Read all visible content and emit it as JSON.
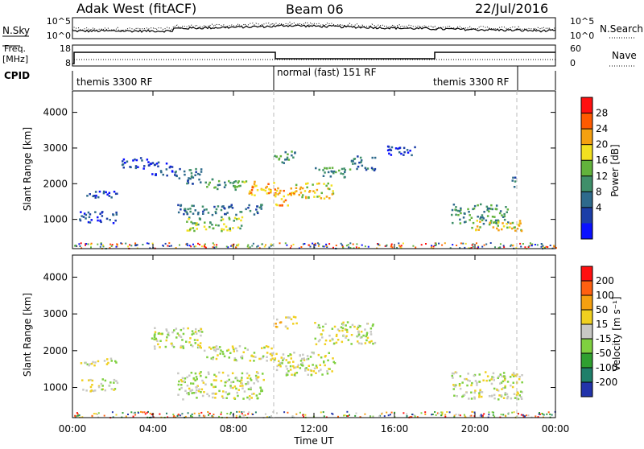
{
  "header": {
    "radar": "Adak West (fitACF)",
    "beam": "Beam 06",
    "date": "22/Jul/2016"
  },
  "top_panels": {
    "nsky_label": "N.Sky",
    "nsky_ticks": [
      "10^5",
      "10^0"
    ],
    "nsearch_label": "N.Search",
    "nsearch_ticks": [
      "10^5",
      "10^0"
    ],
    "freq_label": "Freq.",
    "freq_unit": "[MHz]",
    "freq_ticks": [
      "18",
      "8"
    ],
    "nave_label": "Nave",
    "nave_ticks": [
      "60",
      "0"
    ],
    "cpid_label": "CPID",
    "cpid_segments": [
      "themis 3300 RF",
      "normal (fast) 151 RF",
      "themis 3300 RF"
    ]
  },
  "chart_data": [
    {
      "type": "heatmap",
      "quantity": "Power",
      "ylabel": "Slant Range [km]",
      "yticks": [
        1000,
        2000,
        3000,
        4000
      ],
      "ylim": [
        180,
        4600
      ],
      "xlim": [
        0,
        24
      ],
      "colorbar_label": "Power [dB]",
      "colorbar_ticks": [
        "28",
        "24",
        "20",
        "16",
        "12",
        "8",
        "4"
      ],
      "colorbar_colors": [
        "#0a10ff",
        "#1c3ea8",
        "#2e6a8c",
        "#3f8f6a",
        "#62b33c",
        "#f2e020",
        "#f5a010",
        "#ff5a00",
        "#ff1010"
      ],
      "features": [
        {
          "t": [
            0.3,
            2.2
          ],
          "r": [
            1620,
            1820
          ],
          "level": 1
        },
        {
          "t": [
            0.3,
            2.2
          ],
          "r": [
            920,
            1260
          ],
          "level": 1
        },
        {
          "t": [
            2.4,
            3.9
          ],
          "r": [
            2450,
            2800
          ],
          "level": 1
        },
        {
          "t": [
            3.9,
            5.0
          ],
          "r": [
            2250,
            2650
          ],
          "level": 1
        },
        {
          "t": [
            5.0,
            6.4
          ],
          "r": [
            2000,
            2450
          ],
          "level": 2
        },
        {
          "t": [
            5.2,
            9.5
          ],
          "r": [
            1150,
            1450
          ],
          "level": 2
        },
        {
          "t": [
            5.6,
            8.4
          ],
          "r": [
            700,
            1100
          ],
          "level": 4
        },
        {
          "t": [
            6.5,
            8.6
          ],
          "r": [
            1850,
            2150
          ],
          "level": 3
        },
        {
          "t": [
            8.5,
            10.0
          ],
          "r": [
            1700,
            2100
          ],
          "level": 6
        },
        {
          "t": [
            10.0,
            11.0
          ],
          "r": [
            1350,
            1900
          ],
          "level": 6
        },
        {
          "t": [
            11.0,
            13.0
          ],
          "r": [
            1600,
            2050
          ],
          "level": 5
        },
        {
          "t": [
            10.0,
            11.1
          ],
          "r": [
            2600,
            2950
          ],
          "level": 3
        },
        {
          "t": [
            12.0,
            13.8
          ],
          "r": [
            2200,
            2500
          ],
          "level": 3
        },
        {
          "t": [
            13.8,
            15.0
          ],
          "r": [
            2400,
            2800
          ],
          "level": 2
        },
        {
          "t": [
            15.5,
            17.0
          ],
          "r": [
            2800,
            3100
          ],
          "level": 1
        },
        {
          "t": [
            18.8,
            21.6
          ],
          "r": [
            900,
            1450
          ],
          "level": 3
        },
        {
          "t": [
            19.8,
            22.3
          ],
          "r": [
            700,
            1000
          ],
          "level": 5
        },
        {
          "t": [
            21.8,
            22.1
          ],
          "r": [
            1900,
            2200
          ],
          "level": 2
        }
      ]
    },
    {
      "type": "heatmap",
      "quantity": "Velocity",
      "ylabel": "Slant Range [km]",
      "yticks": [
        1000,
        2000,
        3000,
        4000
      ],
      "ylim": [
        180,
        4600
      ],
      "xlim": [
        0,
        24
      ],
      "xticks": [
        "00:00",
        "04:00",
        "08:00",
        "12:00",
        "16:00",
        "20:00",
        "00:00"
      ],
      "xlabel": "Time UT",
      "colorbar_label": "Velocity [m s⁻¹]",
      "colorbar_ticks": [
        "200",
        "100",
        "50",
        "15",
        "-15",
        "-50",
        "-100",
        "-200"
      ],
      "colorbar_colors": [
        "#2233aa",
        "#1f7f6a",
        "#2fa030",
        "#7fd040",
        "#c8c8c4",
        "#f0d020",
        "#f5a010",
        "#ff6010",
        "#ff1010"
      ],
      "features": [
        {
          "t": [
            0.3,
            2.2
          ],
          "r": [
            1620,
            1820
          ],
          "level": 4
        },
        {
          "t": [
            0.3,
            2.2
          ],
          "r": [
            920,
            1260
          ],
          "level": 4
        },
        {
          "t": [
            3.9,
            6.4
          ],
          "r": [
            2050,
            2650
          ],
          "level": 4
        },
        {
          "t": [
            5.2,
            9.5
          ],
          "r": [
            700,
            1450
          ],
          "level": 4
        },
        {
          "t": [
            6.5,
            10.0
          ],
          "r": [
            1750,
            2150
          ],
          "level": 4
        },
        {
          "t": [
            10.0,
            13.0
          ],
          "r": [
            1350,
            2000
          ],
          "level": 4
        },
        {
          "t": [
            10.0,
            11.1
          ],
          "r": [
            2600,
            2950
          ],
          "level": 5
        },
        {
          "t": [
            12.0,
            15.0
          ],
          "r": [
            2200,
            2800
          ],
          "level": 4
        },
        {
          "t": [
            18.8,
            22.3
          ],
          "r": [
            700,
            1450
          ],
          "level": 4
        }
      ]
    }
  ]
}
